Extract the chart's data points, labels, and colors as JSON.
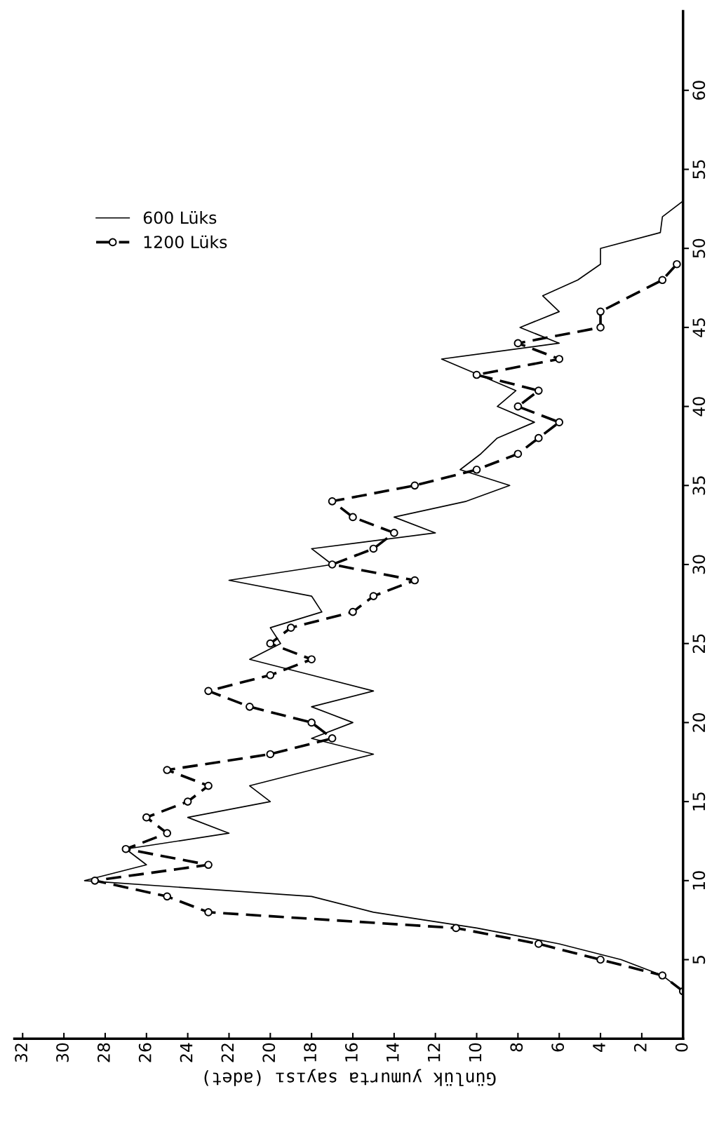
{
  "chart_data": {
    "type": "line",
    "orientation": "horizontal",
    "xlabel": "Günlük yumurta sayısı (adet)",
    "xlim": [
      32.4,
      0
    ],
    "xticks": [
      0,
      2,
      4,
      6,
      8,
      10,
      12,
      14,
      16,
      18,
      20,
      22,
      24,
      26,
      28,
      30,
      32
    ],
    "ylim": [
      0,
      65
    ],
    "yticks": [
      5,
      10,
      15,
      20,
      25,
      30,
      35,
      40,
      45,
      50,
      55,
      60
    ],
    "grid": false,
    "legend": "top left",
    "series": [
      {
        "name": "600 Lüks",
        "color": "#000000",
        "line_style": "solid",
        "marker": "none",
        "x": [
          3,
          4,
          5,
          6,
          7,
          8,
          9,
          10,
          11,
          12,
          13,
          14,
          15,
          16,
          17,
          18,
          19,
          20,
          21,
          22,
          23,
          24,
          25,
          26,
          27,
          28,
          29,
          30,
          31,
          32,
          33,
          34,
          35,
          36,
          37,
          38,
          39,
          40,
          41,
          43,
          44,
          45,
          46,
          47,
          48,
          49,
          50,
          51,
          52,
          53
        ],
        "values": [
          0,
          1,
          3,
          6,
          10,
          15,
          18,
          29,
          26,
          27,
          22,
          24,
          20,
          21,
          18,
          15,
          18,
          16,
          18,
          15,
          18,
          21,
          19.5,
          20,
          17.5,
          18,
          22,
          17,
          18,
          12,
          14,
          10.5,
          8.4,
          10.8,
          9.8,
          9,
          7.2,
          9,
          8.1,
          11.7,
          6,
          7.9,
          6,
          6.8,
          5.1,
          4,
          4,
          1.1,
          1,
          0
        ]
      },
      {
        "name": "1200 Lüks",
        "color": "#000000",
        "line_style": "dashed",
        "marker": "circle",
        "x": [
          3,
          4,
          5,
          6,
          7,
          8,
          9,
          10,
          11,
          12,
          13,
          14,
          15,
          16,
          17,
          18,
          19,
          20,
          21,
          22,
          23,
          24,
          25,
          26,
          27,
          28,
          29,
          30,
          31,
          32,
          33,
          34,
          35,
          36,
          37,
          38,
          39,
          40,
          41,
          42,
          43,
          44,
          45,
          46,
          48,
          49
        ],
        "values": [
          0,
          1,
          4,
          7,
          11,
          23,
          25,
          28.5,
          23,
          27,
          25,
          26,
          24,
          23,
          25,
          20,
          17,
          18,
          21,
          23,
          20,
          18,
          20,
          19,
          16,
          15,
          13,
          17,
          15,
          14,
          16,
          17,
          13,
          10,
          8,
          7,
          6,
          8,
          7,
          10,
          6,
          8,
          4,
          4,
          1,
          0.3
        ]
      }
    ]
  }
}
